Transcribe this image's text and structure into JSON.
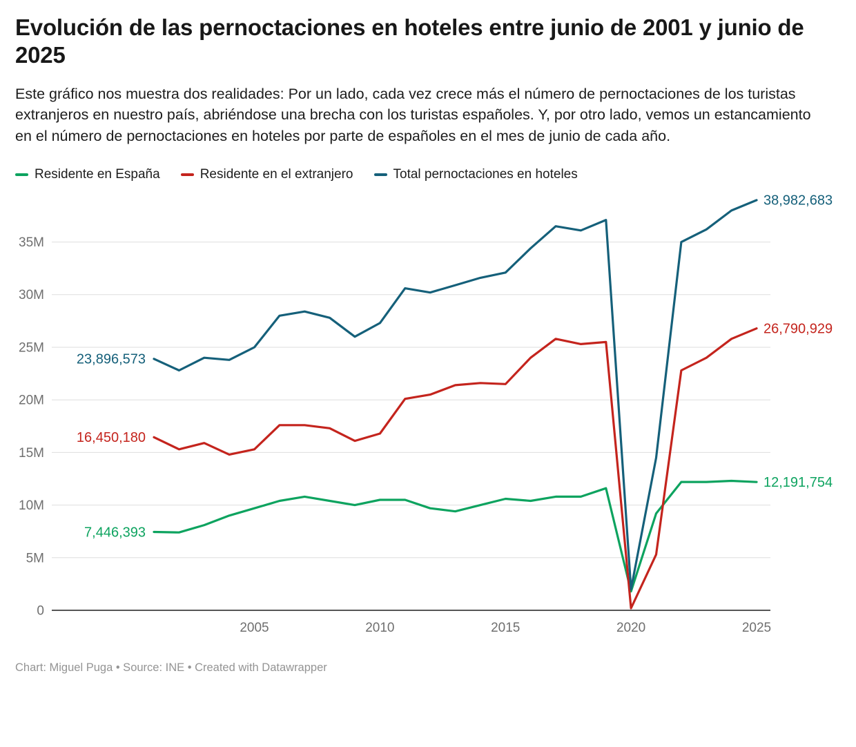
{
  "header": {
    "title": "Evolución de las pernoctaciones en hoteles entre junio de 2001 y junio de 2025",
    "description": "Este gráfico nos muestra dos realidades: Por un lado, cada vez crece más el número de pernoctaciones de los turistas extranjeros en nuestro país, abriéndose una brecha con los turistas españoles. Y, por otro lado, vemos un estancamiento en el número de pernoctaciones en hoteles por parte de españoles en el mes de junio de cada año."
  },
  "legend": {
    "items": [
      {
        "label": "Residente en España",
        "color": "#0da35f"
      },
      {
        "label": "Residente en el extranjero",
        "color": "#c4241d"
      },
      {
        "label": "Total pernoctaciones en hoteles",
        "color": "#15607a"
      }
    ]
  },
  "chart_data": {
    "type": "line",
    "title": "Evolución de las pernoctaciones en hoteles entre junio de 2001 y junio de 2025",
    "xlabel": "",
    "ylabel": "",
    "grid": "horizontal",
    "legend_position": "top",
    "ylim": [
      0,
      39500000
    ],
    "x": [
      2001,
      2002,
      2003,
      2004,
      2005,
      2006,
      2007,
      2008,
      2009,
      2010,
      2011,
      2012,
      2013,
      2014,
      2015,
      2016,
      2017,
      2018,
      2019,
      2020,
      2021,
      2022,
      2023,
      2024,
      2025
    ],
    "x_ticks": [
      2005,
      2010,
      2015,
      2020,
      2025
    ],
    "y_ticks": [
      {
        "value": 0,
        "label": "0"
      },
      {
        "value": 5000000,
        "label": "5M"
      },
      {
        "value": 10000000,
        "label": "10M"
      },
      {
        "value": 15000000,
        "label": "15M"
      },
      {
        "value": 20000000,
        "label": "20M"
      },
      {
        "value": 25000000,
        "label": "25M"
      },
      {
        "value": 30000000,
        "label": "30M"
      },
      {
        "value": 35000000,
        "label": "35M"
      }
    ],
    "series": [
      {
        "name": "Residente en España",
        "color": "#0da35f",
        "start_label": "7,446,393",
        "end_label": "12,191,754",
        "values": [
          7446393,
          7400000,
          8100000,
          9000000,
          9700000,
          10400000,
          10800000,
          10400000,
          10000000,
          10500000,
          10500000,
          9700000,
          9400000,
          10000000,
          10600000,
          10400000,
          10800000,
          10800000,
          11600000,
          1800000,
          9200000,
          12200000,
          12200000,
          12300000,
          12191754
        ]
      },
      {
        "name": "Residente en el extranjero",
        "color": "#c4241d",
        "start_label": "16,450,180",
        "end_label": "26,790,929",
        "values": [
          16450180,
          15300000,
          15900000,
          14800000,
          15300000,
          17600000,
          17600000,
          17300000,
          16100000,
          16800000,
          20100000,
          20500000,
          21400000,
          21600000,
          21500000,
          24000000,
          25800000,
          25300000,
          25500000,
          200000,
          5300000,
          22800000,
          24000000,
          25800000,
          26790929
        ]
      },
      {
        "name": "Total pernoctaciones en hoteles",
        "color": "#15607a",
        "start_label": "23,896,573",
        "end_label": "38,982,683",
        "values": [
          23896573,
          22800000,
          24000000,
          23800000,
          25000000,
          28000000,
          28400000,
          27800000,
          26000000,
          27300000,
          30600000,
          30200000,
          30900000,
          31600000,
          32100000,
          34400000,
          36500000,
          36100000,
          37100000,
          2000000,
          14500000,
          35000000,
          36200000,
          38000000,
          38982683
        ]
      }
    ]
  },
  "footer": {
    "text": "Chart: Miguel Puga • Source: INE • Created with Datawrapper"
  }
}
